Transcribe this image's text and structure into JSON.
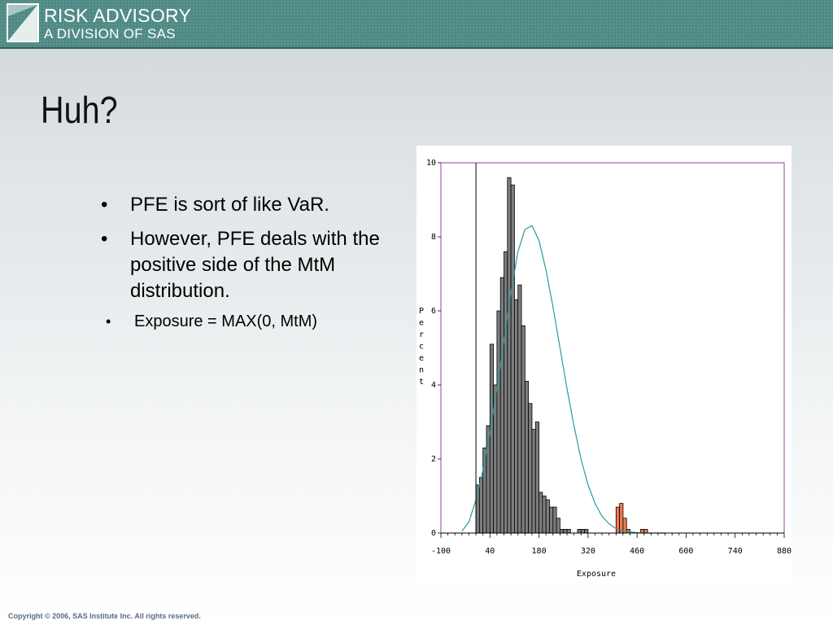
{
  "header": {
    "logo_line1": "RISK ADVISORY",
    "logo_line2": "A DIVISION OF SAS"
  },
  "slide": {
    "title": "Huh?",
    "bullets": [
      "PFE is sort of like VaR.",
      "However, PFE deals with the positive side of the MtM distribution."
    ],
    "sub_bullets": [
      "Exposure = MAX(0, MtM)"
    ],
    "bullet_char": "•"
  },
  "chart_data": {
    "type": "bar",
    "xlabel": "Exposure",
    "ylabel": "Percent",
    "xlim": [
      -100,
      880
    ],
    "ylim": [
      0,
      10
    ],
    "x_ticks": [
      -100,
      40,
      180,
      320,
      460,
      600,
      740,
      880
    ],
    "y_ticks": [
      0,
      2,
      4,
      6,
      8,
      10
    ],
    "bin_width": 10,
    "reference_line_x": 0,
    "colors": {
      "bar": "#7d7d7d",
      "tail": "#f07a4f",
      "curve": "#2a9a9a",
      "frame": "#9b3ea6"
    },
    "series": [
      {
        "x": [
          0,
          10,
          20,
          30,
          40,
          50,
          60,
          70,
          80,
          90,
          100,
          110,
          120,
          130,
          140,
          150,
          160,
          170,
          180,
          190,
          200,
          210,
          220,
          230,
          240,
          250,
          260,
          270,
          280,
          290,
          300,
          310,
          320,
          330,
          340
        ],
        "values": [
          1.3,
          1.5,
          2.3,
          2.9,
          5.1,
          4.0,
          6.0,
          6.9,
          7.6,
          9.6,
          9.4,
          6.3,
          6.7,
          5.6,
          4.1,
          3.5,
          2.8,
          3.0,
          1.1,
          1.0,
          0.9,
          0.7,
          0.7,
          0.4,
          0.1,
          0.1,
          0.1,
          0.0,
          0.0,
          0.1,
          0.1,
          0.1,
          0.0,
          0.0,
          0.0
        ]
      },
      {
        "x": [
          400,
          410,
          420,
          430,
          440,
          450,
          460,
          470,
          480,
          490,
          500,
          510,
          520
        ],
        "values": [
          0.7,
          0.8,
          0.4,
          0.1,
          0.0,
          0.0,
          0.0,
          0.1,
          0.1,
          0.0,
          0.0,
          0.0,
          0.0
        ]
      }
    ],
    "density_curve": {
      "x": [
        -40,
        -20,
        0,
        20,
        40,
        60,
        80,
        100,
        120,
        140,
        160,
        180,
        200,
        220,
        240,
        260,
        280,
        300,
        320,
        340,
        360,
        380,
        400,
        420,
        440,
        460,
        480,
        500,
        540
      ],
      "y": [
        0.05,
        0.3,
        0.9,
        1.7,
        2.7,
        3.9,
        5.2,
        6.5,
        7.6,
        8.2,
        8.3,
        7.9,
        7.1,
        6.1,
        5.0,
        3.9,
        2.9,
        2.0,
        1.3,
        0.8,
        0.45,
        0.25,
        0.12,
        0.06,
        0.03,
        0.01,
        0.0,
        0.0,
        0.0
      ]
    }
  },
  "footer": {
    "copyright": "Copyright © 2006, SAS Institute Inc. All rights reserved."
  }
}
